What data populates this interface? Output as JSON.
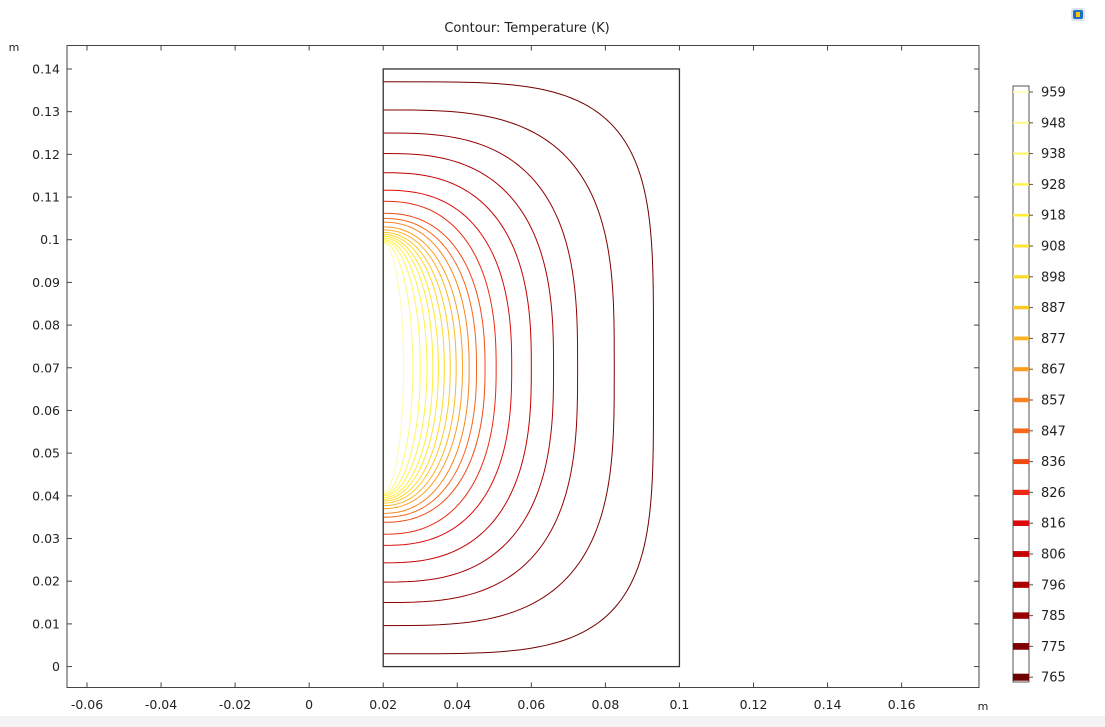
{
  "chart_data": {
    "type": "contour",
    "title": "Contour: Temperature (K)",
    "x_unit": "m",
    "y_unit": "m",
    "xlim": [
      -0.0654,
      0.1809
    ],
    "ylim": [
      -0.0049,
      0.1455
    ],
    "x_ticks": [
      "-0.06",
      "-0.04",
      "-0.02",
      "0",
      "0.02",
      "0.04",
      "0.06",
      "0.08",
      "0.1",
      "0.12",
      "0.14",
      "0.16"
    ],
    "y_ticks": [
      "0",
      "0.01",
      "0.02",
      "0.03",
      "0.04",
      "0.05",
      "0.06",
      "0.07",
      "0.08",
      "0.09",
      "0.1",
      "0.11",
      "0.12",
      "0.13",
      "0.14"
    ],
    "domain_rect": {
      "x0": 0.02,
      "x1": 0.1,
      "y0": 0.0,
      "y1": 0.14
    },
    "center": {
      "x": 0.02,
      "y": 0.07
    },
    "levels": [
      765,
      775,
      785,
      796,
      806,
      816,
      826,
      836,
      847,
      857,
      867,
      877,
      887,
      898,
      908,
      918,
      928,
      938,
      948,
      959
    ],
    "level_colors": [
      "#6e0000",
      "#7f0000",
      "#950000",
      "#aa0000",
      "#c40000",
      "#dd0a0a",
      "#ea2a12",
      "#f04a14",
      "#f5661a",
      "#f7841e",
      "#fa9e22",
      "#fbb526",
      "#fcc92a",
      "#fdd92e",
      "#fee434",
      "#ffee3a",
      "#fff24a",
      "#fff562",
      "#fff87c",
      "#fffbb4"
    ],
    "contours": [
      {
        "level": 765,
        "half_height": 0.067,
        "width": 0.073,
        "exponent": 4.2
      },
      {
        "level": 775,
        "half_height": 0.0604,
        "width": 0.0624,
        "exponent": 3.2
      },
      {
        "level": 785,
        "half_height": 0.055,
        "width": 0.0525,
        "exponent": 2.9
      },
      {
        "level": 796,
        "half_height": 0.0502,
        "width": 0.046,
        "exponent": 2.7
      },
      {
        "level": 806,
        "half_height": 0.0457,
        "width": 0.04,
        "exponent": 2.6
      },
      {
        "level": 816,
        "half_height": 0.0416,
        "width": 0.0347,
        "exponent": 2.5
      },
      {
        "level": 826,
        "half_height": 0.039,
        "width": 0.0305,
        "exponent": 2.4
      },
      {
        "level": 836,
        "half_height": 0.0362,
        "width": 0.0275,
        "exponent": 2.35
      },
      {
        "level": 847,
        "half_height": 0.035,
        "width": 0.0252,
        "exponent": 2.3
      },
      {
        "level": 857,
        "half_height": 0.0341,
        "width": 0.0232,
        "exponent": 2.25
      },
      {
        "level": 867,
        "half_height": 0.033,
        "width": 0.0214,
        "exponent": 2.2
      },
      {
        "level": 877,
        "half_height": 0.0323,
        "width": 0.0197,
        "exponent": 2.2
      },
      {
        "level": 887,
        "half_height": 0.0317,
        "width": 0.0181,
        "exponent": 2.15
      },
      {
        "level": 898,
        "half_height": 0.0312,
        "width": 0.0165,
        "exponent": 2.15
      },
      {
        "level": 908,
        "half_height": 0.0308,
        "width": 0.0149,
        "exponent": 2.1
      },
      {
        "level": 918,
        "half_height": 0.0304,
        "width": 0.0134,
        "exponent": 2.1
      },
      {
        "level": 928,
        "half_height": 0.03,
        "width": 0.0118,
        "exponent": 2.05
      },
      {
        "level": 938,
        "half_height": 0.0297,
        "width": 0.01,
        "exponent": 2.05
      },
      {
        "level": 948,
        "half_height": 0.0294,
        "width": 0.008,
        "exponent": 2.0
      },
      {
        "level": 959,
        "half_height": 0.0291,
        "width": 0.0055,
        "exponent": 2.0
      }
    ],
    "legend": {
      "labels": [
        "959",
        "948",
        "938",
        "928",
        "918",
        "908",
        "898",
        "887",
        "877",
        "867",
        "857",
        "847",
        "836",
        "826",
        "816",
        "806",
        "796",
        "785",
        "775",
        "765"
      ],
      "placement": "right"
    }
  },
  "ui": {
    "corner_icon": "app-logo-icon"
  }
}
